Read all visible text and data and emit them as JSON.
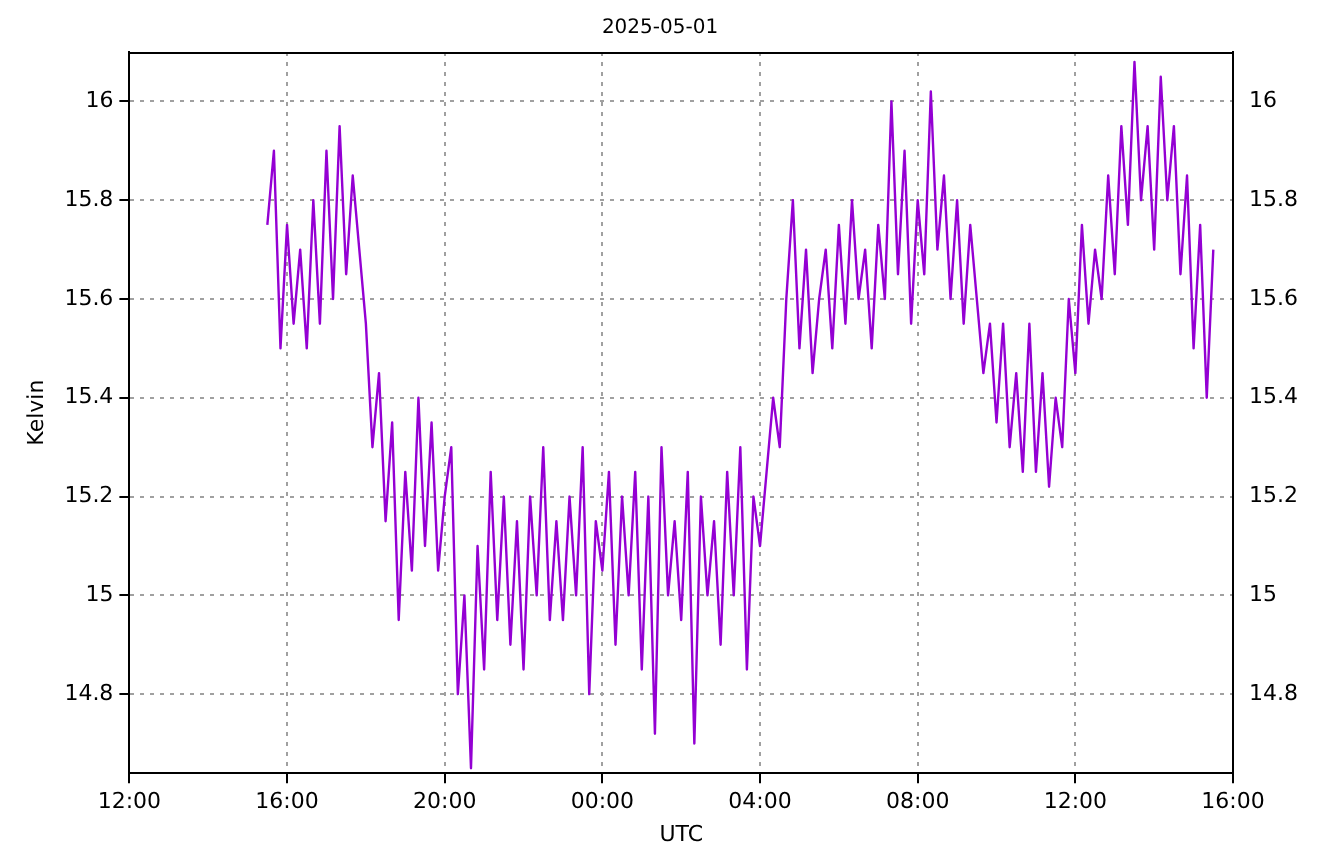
{
  "chart_data": {
    "type": "line",
    "title": "2025-05-01",
    "xlabel": "UTC",
    "ylabel": "Kelvin",
    "xlim": [
      "2025-04-30T12:00",
      "2025-05-01T16:00"
    ],
    "xticks": [
      {
        "value": "2025-04-30T12:00",
        "label": "12:00"
      },
      {
        "value": "2025-04-30T16:00",
        "label": "16:00"
      },
      {
        "value": "2025-04-30T20:00",
        "label": "20:00"
      },
      {
        "value": "2025-05-01T00:00",
        "label": "00:00"
      },
      {
        "value": "2025-05-01T04:00",
        "label": "04:00"
      },
      {
        "value": "2025-05-01T08:00",
        "label": "08:00"
      },
      {
        "value": "2025-05-01T12:00",
        "label": "12:00"
      },
      {
        "value": "2025-05-01T16:00",
        "label": "16:00"
      }
    ],
    "ylim": [
      14.64,
      16.1
    ],
    "yticks": [
      14.8,
      15,
      15.2,
      15.4,
      15.6,
      15.8,
      16
    ],
    "y2lim": [
      14.64,
      16.1
    ],
    "y2ticks": [
      14.8,
      15,
      15.2,
      15.4,
      15.6,
      15.8,
      16
    ],
    "grid": true,
    "legend": false,
    "marker": "none",
    "line_style": "solid",
    "series": [
      {
        "color": "#9400d3",
        "x": [
          "2025-04-30T15:30",
          "2025-04-30T15:40",
          "2025-04-30T15:50",
          "2025-04-30T16:00",
          "2025-04-30T16:10",
          "2025-04-30T16:20",
          "2025-04-30T16:30",
          "2025-04-30T16:40",
          "2025-04-30T16:50",
          "2025-04-30T17:00",
          "2025-04-30T17:10",
          "2025-04-30T17:20",
          "2025-04-30T17:30",
          "2025-04-30T17:40",
          "2025-04-30T17:50",
          "2025-04-30T18:00",
          "2025-04-30T18:10",
          "2025-04-30T18:20",
          "2025-04-30T18:30",
          "2025-04-30T18:40",
          "2025-04-30T18:50",
          "2025-04-30T19:00",
          "2025-04-30T19:10",
          "2025-04-30T19:20",
          "2025-04-30T19:30",
          "2025-04-30T19:40",
          "2025-04-30T19:50",
          "2025-04-30T20:00",
          "2025-04-30T20:10",
          "2025-04-30T20:20",
          "2025-04-30T20:30",
          "2025-04-30T20:40",
          "2025-04-30T20:50",
          "2025-04-30T21:00",
          "2025-04-30T21:10",
          "2025-04-30T21:20",
          "2025-04-30T21:30",
          "2025-04-30T21:40",
          "2025-04-30T21:50",
          "2025-04-30T22:00",
          "2025-04-30T22:10",
          "2025-04-30T22:20",
          "2025-04-30T22:30",
          "2025-04-30T22:40",
          "2025-04-30T22:50",
          "2025-04-30T23:00",
          "2025-04-30T23:10",
          "2025-04-30T23:20",
          "2025-04-30T23:30",
          "2025-04-30T23:40",
          "2025-04-30T23:50",
          "2025-05-01T00:00",
          "2025-05-01T00:10",
          "2025-05-01T00:20",
          "2025-05-01T00:30",
          "2025-05-01T00:40",
          "2025-05-01T00:50",
          "2025-05-01T01:00",
          "2025-05-01T01:10",
          "2025-05-01T01:20",
          "2025-05-01T01:30",
          "2025-05-01T01:40",
          "2025-05-01T01:50",
          "2025-05-01T02:00",
          "2025-05-01T02:10",
          "2025-05-01T02:20",
          "2025-05-01T02:30",
          "2025-05-01T02:40",
          "2025-05-01T02:50",
          "2025-05-01T03:00",
          "2025-05-01T03:10",
          "2025-05-01T03:20",
          "2025-05-01T03:30",
          "2025-05-01T03:40",
          "2025-05-01T03:50",
          "2025-05-01T04:00",
          "2025-05-01T04:10",
          "2025-05-01T04:20",
          "2025-05-01T04:30",
          "2025-05-01T04:40",
          "2025-05-01T04:50",
          "2025-05-01T05:00",
          "2025-05-01T05:10",
          "2025-05-01T05:20",
          "2025-05-01T05:30",
          "2025-05-01T05:40",
          "2025-05-01T05:50",
          "2025-05-01T06:00",
          "2025-05-01T06:10",
          "2025-05-01T06:20",
          "2025-05-01T06:30",
          "2025-05-01T06:40",
          "2025-05-01T06:50",
          "2025-05-01T07:00",
          "2025-05-01T07:10",
          "2025-05-01T07:20",
          "2025-05-01T07:30",
          "2025-05-01T07:40",
          "2025-05-01T07:50",
          "2025-05-01T08:00",
          "2025-05-01T08:10",
          "2025-05-01T08:20",
          "2025-05-01T08:30",
          "2025-05-01T08:40",
          "2025-05-01T08:50",
          "2025-05-01T09:00",
          "2025-05-01T09:10",
          "2025-05-01T09:20",
          "2025-05-01T09:30",
          "2025-05-01T09:40",
          "2025-05-01T09:50",
          "2025-05-01T10:00",
          "2025-05-01T10:10",
          "2025-05-01T10:20",
          "2025-05-01T10:30",
          "2025-05-01T10:40",
          "2025-05-01T10:50",
          "2025-05-01T11:00",
          "2025-05-01T11:10",
          "2025-05-01T11:20",
          "2025-05-01T11:30",
          "2025-05-01T11:40",
          "2025-05-01T11:50",
          "2025-05-01T12:00",
          "2025-05-01T12:10",
          "2025-05-01T12:20",
          "2025-05-01T12:30",
          "2025-05-01T12:40",
          "2025-05-01T12:50",
          "2025-05-01T13:00",
          "2025-05-01T13:10",
          "2025-05-01T13:20",
          "2025-05-01T13:30",
          "2025-05-01T13:40",
          "2025-05-01T13:50",
          "2025-05-01T14:00",
          "2025-05-01T14:10",
          "2025-05-01T14:20",
          "2025-05-01T14:30",
          "2025-05-01T14:40",
          "2025-05-01T14:50",
          "2025-05-01T15:00",
          "2025-05-01T15:10",
          "2025-05-01T15:20",
          "2025-05-01T15:30"
        ],
        "values": [
          15.75,
          15.9,
          15.5,
          15.75,
          15.55,
          15.7,
          15.5,
          15.8,
          15.55,
          15.9,
          15.6,
          15.95,
          15.65,
          15.85,
          15.7,
          15.55,
          15.3,
          15.45,
          15.15,
          15.35,
          14.95,
          15.25,
          15.05,
          15.4,
          15.1,
          15.35,
          15.05,
          15.2,
          15.3,
          14.8,
          15,
          14.65,
          15.1,
          14.85,
          15.25,
          14.95,
          15.2,
          14.9,
          15.15,
          14.85,
          15.2,
          15,
          15.3,
          14.95,
          15.15,
          14.95,
          15.2,
          15,
          15.3,
          14.8,
          15.15,
          15.05,
          15.25,
          14.9,
          15.2,
          15,
          15.25,
          14.85,
          15.2,
          14.72,
          15.3,
          15,
          15.15,
          14.95,
          15.25,
          14.7,
          15.2,
          15,
          15.15,
          14.9,
          15.25,
          15,
          15.3,
          14.85,
          15.2,
          15.1,
          15.25,
          15.4,
          15.3,
          15.6,
          15.8,
          15.5,
          15.7,
          15.45,
          15.6,
          15.7,
          15.5,
          15.75,
          15.55,
          15.8,
          15.6,
          15.7,
          15.5,
          15.75,
          15.6,
          16,
          15.65,
          15.9,
          15.55,
          15.8,
          15.65,
          16.02,
          15.7,
          15.85,
          15.6,
          15.8,
          15.55,
          15.75,
          15.6,
          15.45,
          15.55,
          15.35,
          15.55,
          15.3,
          15.45,
          15.25,
          15.55,
          15.25,
          15.45,
          15.22,
          15.4,
          15.3,
          15.6,
          15.45,
          15.75,
          15.55,
          15.7,
          15.6,
          15.85,
          15.65,
          15.95,
          15.75,
          16.08,
          15.8,
          15.95,
          15.7,
          16.05,
          15.8,
          15.95,
          15.65,
          15.85,
          15.5,
          15.75,
          15.4,
          15.7
        ]
      }
    ]
  }
}
